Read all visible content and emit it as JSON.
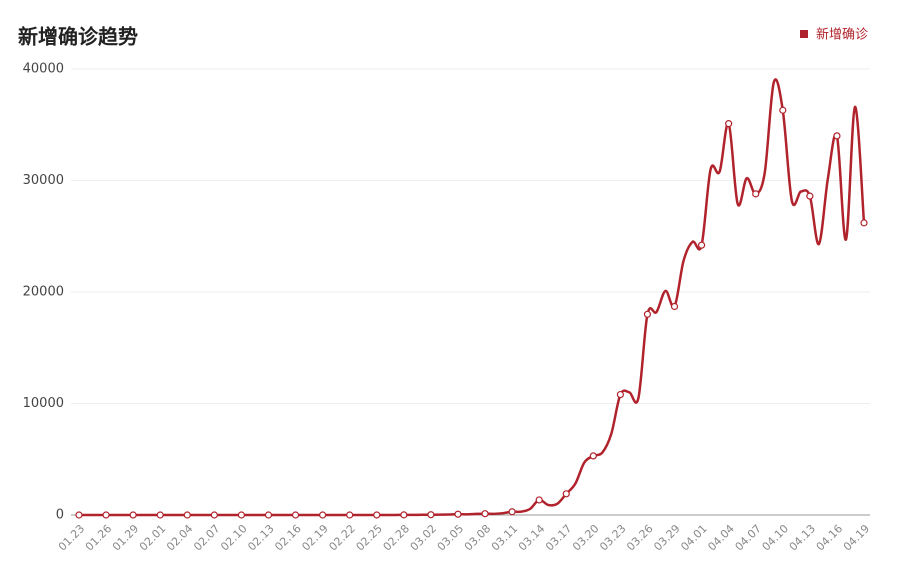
{
  "chart_data": {
    "type": "line",
    "title": "新增确诊趋势",
    "categories": [
      "01.23",
      null,
      null,
      "01.26",
      null,
      null,
      "01.29",
      null,
      null,
      "02.01",
      null,
      null,
      "02.04",
      null,
      null,
      "02.07",
      null,
      null,
      "02.10",
      null,
      null,
      "02.13",
      null,
      null,
      "02.16",
      null,
      null,
      "02.19",
      null,
      null,
      "02.22",
      null,
      null,
      "02.25",
      null,
      null,
      "02.28",
      null,
      null,
      "03.02",
      null,
      null,
      "03.05",
      null,
      null,
      "03.08",
      null,
      null,
      "03.11",
      null,
      null,
      "03.14",
      null,
      null,
      "03.17",
      null,
      null,
      "03.20",
      null,
      null,
      "03.23",
      null,
      null,
      "03.26",
      null,
      null,
      "03.29",
      null,
      null,
      "04.01",
      null,
      null,
      "04.04",
      null,
      null,
      "04.07",
      null,
      null,
      "04.10",
      null,
      null,
      "04.13",
      null,
      null,
      "04.16",
      null,
      null,
      "04.19"
    ],
    "series": [
      {
        "name": "新增确诊",
        "color": "#b1232c",
        "values": [
          0,
          0,
          0,
          0,
          0,
          0,
          1,
          0,
          0,
          0,
          1,
          0,
          0,
          0,
          1,
          0,
          0,
          0,
          0,
          0,
          0,
          0,
          0,
          0,
          0,
          0,
          1,
          0,
          0,
          0,
          0,
          0,
          0,
          1,
          5,
          3,
          10,
          8,
          20,
          25,
          30,
          40,
          70,
          60,
          100,
          116,
          106,
          163,
          290,
          300,
          550,
          1350,
          900,
          1000,
          1900,
          2800,
          4700,
          5300,
          5600,
          7300,
          10800,
          11000,
          10500,
          18000,
          18200,
          20100,
          18700,
          22800,
          24500,
          24200,
          31000,
          30800,
          35100,
          27900,
          30200,
          28800,
          30700,
          38800,
          36300,
          28200,
          29000,
          28600,
          24300,
          30200,
          34000,
          24700,
          36600,
          26200
        ]
      }
    ],
    "ylim": [
      0,
      40000
    ],
    "yticks": [
      0,
      10000,
      20000,
      30000,
      40000
    ],
    "grid": true,
    "legend": "top-right"
  }
}
